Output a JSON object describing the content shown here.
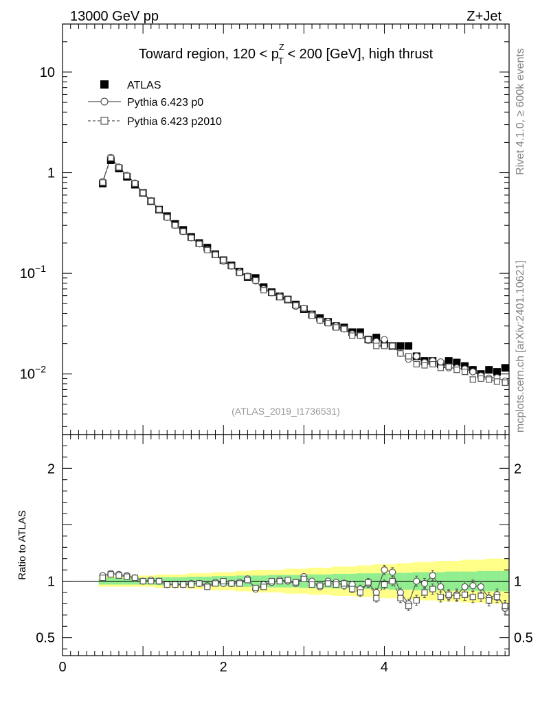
{
  "header": {
    "left": "13000 GeV pp",
    "right": "Z+Jet",
    "side_top": "Rivet 4.1.0, ≥ 600k events",
    "side_bottom": "mcplots.cern.ch [arXiv:2401.10621]"
  },
  "chart_data": {
    "type": "line",
    "title": "Toward region, 120 < p_T^Z < 200 [GeV], high thrust",
    "title_parts": {
      "pre": "Toward region, 120 < p",
      "sup": "Z",
      "sub": "T",
      "post": " < 200 [GeV], high thrust"
    },
    "watermark": "(ATLAS_2019_I1736531)",
    "xlim": [
      0,
      5.55
    ],
    "main": {
      "yscale": "log",
      "ylim": [
        0.0025,
        30
      ],
      "yticks": [
        {
          "value": 10,
          "label": "10",
          "exp": ""
        },
        {
          "value": 1,
          "label": "1",
          "exp": ""
        },
        {
          "value": 0.1,
          "label": "10",
          "exp": "−1"
        },
        {
          "value": 0.01,
          "label": "10",
          "exp": "−2"
        }
      ]
    },
    "ratio": {
      "ylabel": "Ratio to ATLAS",
      "ylim": [
        0.34,
        2.3
      ],
      "yticks": [
        {
          "value": 2,
          "label": "2"
        },
        {
          "value": 1,
          "label": "1"
        },
        {
          "value": 0.5,
          "label": "0.5"
        }
      ]
    },
    "xticks": [
      {
        "value": 0,
        "label": "0"
      },
      {
        "value": 2,
        "label": "2"
      },
      {
        "value": 4,
        "label": "4"
      }
    ],
    "legend": [
      "ATLAS",
      "Pythia 6.423 p0",
      "Pythia 6.423 p2010"
    ],
    "x": [
      0.5,
      0.6,
      0.7,
      0.8,
      0.9,
      1.0,
      1.1,
      1.2,
      1.3,
      1.4,
      1.5,
      1.6,
      1.7,
      1.8,
      1.9,
      2.0,
      2.1,
      2.2,
      2.3,
      2.4,
      2.5,
      2.6,
      2.7,
      2.8,
      2.9,
      3.0,
      3.1,
      3.2,
      3.3,
      3.4,
      3.5,
      3.6,
      3.7,
      3.8,
      3.9,
      4.0,
      4.1,
      4.2,
      4.3,
      4.4,
      4.5,
      4.6,
      4.7,
      4.8,
      4.9,
      5.0,
      5.1,
      5.2,
      5.3,
      5.4,
      5.5
    ],
    "series": [
      {
        "name": "ATLAS",
        "values": [
          0.78,
          1.33,
          1.1,
          0.91,
          0.76,
          0.63,
          0.52,
          0.43,
          0.37,
          0.31,
          0.27,
          0.23,
          0.2,
          0.18,
          0.155,
          0.135,
          0.12,
          0.104,
          0.092,
          0.09,
          0.073,
          0.065,
          0.059,
          0.055,
          0.049,
          0.044,
          0.039,
          0.036,
          0.033,
          0.03,
          0.029,
          0.026,
          0.026,
          0.022,
          0.023,
          0.02,
          0.019,
          0.019,
          0.019,
          0.015,
          0.0135,
          0.0135,
          0.0125,
          0.0135,
          0.013,
          0.012,
          0.011,
          0.01,
          0.011,
          0.0105,
          0.0115
        ]
      },
      {
        "name": "Pythia 6.423 p0",
        "values": [
          0.82,
          1.42,
          1.14,
          0.94,
          0.79,
          0.63,
          0.53,
          0.43,
          0.36,
          0.3,
          0.26,
          0.225,
          0.196,
          0.172,
          0.153,
          0.132,
          0.118,
          0.103,
          0.094,
          0.084,
          0.07,
          0.064,
          0.059,
          0.055,
          0.047,
          0.045,
          0.039,
          0.034,
          0.033,
          0.03,
          0.028,
          0.025,
          0.024,
          0.0215,
          0.021,
          0.022,
          0.019,
          0.016,
          0.014,
          0.015,
          0.013,
          0.0135,
          0.0132,
          0.0115,
          0.0115,
          0.0112,
          0.0105,
          0.0096,
          0.0091,
          0.0092,
          0.0085
        ]
      },
      {
        "name": "Pythia 6.423 p2010",
        "values": [
          0.8,
          1.4,
          1.13,
          0.93,
          0.78,
          0.63,
          0.52,
          0.43,
          0.36,
          0.3,
          0.26,
          0.225,
          0.196,
          0.17,
          0.153,
          0.135,
          0.118,
          0.101,
          0.093,
          0.085,
          0.068,
          0.064,
          0.058,
          0.055,
          0.048,
          0.045,
          0.038,
          0.034,
          0.032,
          0.029,
          0.028,
          0.024,
          0.024,
          0.022,
          0.019,
          0.019,
          0.019,
          0.016,
          0.015,
          0.0125,
          0.0122,
          0.0125,
          0.0115,
          0.0118,
          0.011,
          0.0105,
          0.0088,
          0.009,
          0.0088,
          0.0084,
          0.0082
        ]
      }
    ],
    "ratio_series": [
      {
        "name": "Pythia 6.423 p0",
        "values": [
          1.05,
          1.07,
          1.06,
          1.05,
          1.03,
          1.0,
          1.01,
          1.0,
          0.97,
          0.97,
          0.97,
          0.98,
          0.98,
          0.96,
          0.99,
          0.98,
          0.98,
          0.99,
          1.02,
          0.93,
          0.97,
          0.99,
          1.01,
          1.0,
          0.98,
          1.04,
          1.0,
          0.95,
          1.0,
          0.99,
          0.96,
          0.97,
          0.93,
          0.98,
          0.9,
          1.1,
          1.08,
          0.9,
          0.8,
          1.0,
          0.98,
          1.05,
          0.95,
          0.87,
          0.88,
          0.95,
          0.96,
          0.95,
          0.85,
          0.88,
          0.76
        ]
      },
      {
        "name": "Pythia 6.423 p2010",
        "values": [
          1.03,
          1.06,
          1.05,
          1.04,
          1.03,
          1.0,
          1.0,
          1.0,
          0.97,
          0.97,
          0.97,
          0.97,
          0.98,
          0.95,
          0.98,
          1.0,
          0.98,
          0.98,
          1.01,
          0.94,
          0.95,
          1.0,
          1.0,
          1.01,
          0.99,
          1.02,
          0.97,
          0.96,
          0.98,
          0.97,
          0.98,
          0.93,
          0.9,
          0.99,
          0.85,
          0.97,
          1.0,
          0.85,
          0.78,
          0.83,
          0.9,
          0.93,
          0.86,
          0.88,
          0.87,
          0.88,
          0.86,
          0.87,
          0.83,
          0.86,
          0.78
        ]
      }
    ],
    "ratio_errors": [
      0.015,
      0.015,
      0.015,
      0.015,
      0.015,
      0.015,
      0.015,
      0.015,
      0.015,
      0.015,
      0.015,
      0.015,
      0.015,
      0.015,
      0.015,
      0.015,
      0.015,
      0.015,
      0.02,
      0.02,
      0.02,
      0.02,
      0.02,
      0.02,
      0.025,
      0.025,
      0.025,
      0.025,
      0.025,
      0.025,
      0.03,
      0.03,
      0.035,
      0.035,
      0.035,
      0.04,
      0.04,
      0.04,
      0.04,
      0.045,
      0.045,
      0.045,
      0.045,
      0.045,
      0.05,
      0.05,
      0.05,
      0.05,
      0.05,
      0.05,
      0.05
    ],
    "bands": {
      "green_halfwidth": [
        0.03,
        0.03,
        0.03,
        0.03,
        0.03,
        0.03,
        0.03,
        0.035,
        0.035,
        0.035,
        0.035,
        0.04,
        0.04,
        0.04,
        0.045,
        0.045,
        0.045,
        0.05,
        0.05,
        0.05,
        0.05,
        0.055,
        0.055,
        0.055,
        0.055,
        0.06,
        0.06,
        0.06,
        0.06,
        0.065,
        0.065,
        0.065,
        0.07,
        0.07,
        0.07,
        0.07,
        0.075,
        0.075,
        0.075,
        0.08,
        0.08,
        0.08,
        0.08,
        0.085,
        0.085,
        0.085,
        0.085,
        0.09,
        0.09,
        0.09,
        0.09
      ],
      "yellow_halfwidth": [
        0.05,
        0.05,
        0.05,
        0.05,
        0.05,
        0.05,
        0.05,
        0.06,
        0.06,
        0.06,
        0.06,
        0.07,
        0.07,
        0.07,
        0.08,
        0.08,
        0.08,
        0.09,
        0.09,
        0.1,
        0.1,
        0.1,
        0.1,
        0.11,
        0.11,
        0.11,
        0.12,
        0.12,
        0.12,
        0.13,
        0.13,
        0.13,
        0.14,
        0.14,
        0.15,
        0.15,
        0.15,
        0.16,
        0.16,
        0.17,
        0.17,
        0.17,
        0.18,
        0.18,
        0.18,
        0.19,
        0.19,
        0.19,
        0.2,
        0.2,
        0.2
      ]
    },
    "colors": {
      "data": "#000000",
      "mc": "#555555",
      "green": "#90ee90",
      "yellow": "#ffff88",
      "watermark": "#999999",
      "side": "#808080"
    }
  }
}
